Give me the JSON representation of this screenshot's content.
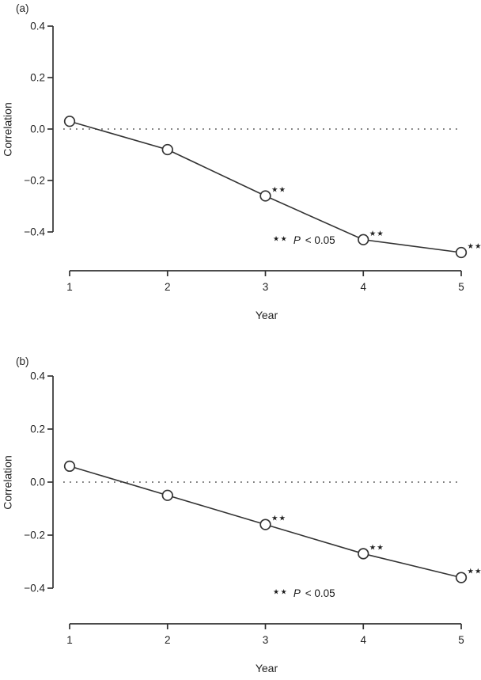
{
  "figure": {
    "colors": {
      "axis": "#333333",
      "line": "#333333",
      "marker_fill": "#ffffff",
      "zero_line": "#7d7d7d",
      "text": "#222222"
    }
  },
  "chart_data": [
    {
      "type": "line",
      "panel_label": "(a)",
      "xlabel": "Year",
      "ylabel": "Correlation",
      "x": [
        1,
        2,
        3,
        4,
        5
      ],
      "y": [
        0.03,
        -0.08,
        -0.26,
        -0.43,
        -0.48
      ],
      "significant": [
        false,
        false,
        true,
        true,
        true
      ],
      "sig_marker": "★★",
      "marker": "open-circle",
      "xticks": [
        1,
        2,
        3,
        4,
        5
      ],
      "xtick_labels": [
        "1",
        "2",
        "3",
        "4",
        "5"
      ],
      "yticks": [
        0.4,
        0.2,
        0.0,
        -0.2,
        -0.4
      ],
      "ytick_labels": [
        "0.4",
        "0.2",
        "0.0",
        "−0.2",
        "−0.4"
      ],
      "xlim": [
        1,
        5
      ],
      "ylim": [
        -0.4,
        0.4
      ],
      "zero_line": "dotted",
      "legend": "none",
      "grid": false,
      "note": {
        "stars": "★★",
        "p": "P",
        "rest": "< 0.05"
      }
    },
    {
      "type": "line",
      "panel_label": "(b)",
      "xlabel": "Year",
      "ylabel": "Correlation",
      "x": [
        1,
        2,
        3,
        4,
        5
      ],
      "y": [
        0.06,
        -0.05,
        -0.16,
        -0.27,
        -0.36
      ],
      "significant": [
        false,
        false,
        true,
        true,
        true
      ],
      "sig_marker": "★★",
      "marker": "open-circle",
      "xticks": [
        1,
        2,
        3,
        4,
        5
      ],
      "xtick_labels": [
        "1",
        "2",
        "3",
        "4",
        "5"
      ],
      "yticks": [
        0.4,
        0.2,
        0.0,
        -0.2,
        -0.4
      ],
      "ytick_labels": [
        "0.4",
        "0.2",
        "0.0",
        "−0.2",
        "−0.4"
      ],
      "xlim": [
        1,
        5
      ],
      "ylim": [
        -0.4,
        0.4
      ],
      "zero_line": "dotted",
      "legend": "none",
      "grid": false,
      "note": {
        "stars": "★★",
        "p": "P",
        "rest": "< 0.05"
      }
    }
  ]
}
